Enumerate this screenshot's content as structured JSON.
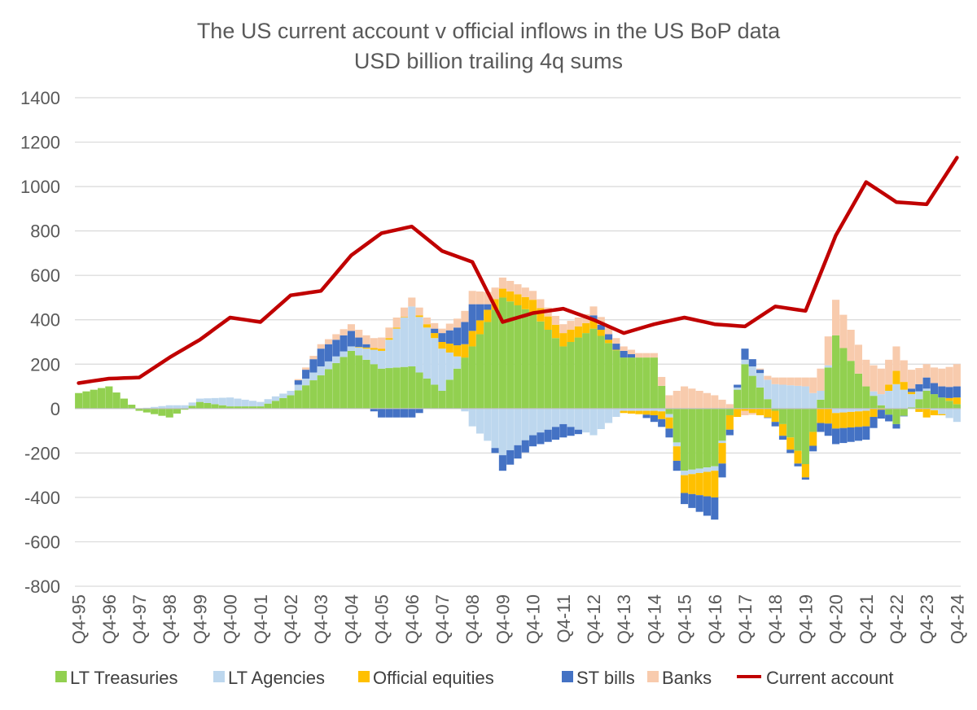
{
  "chart_data": {
    "type": "bar",
    "title": "The US current account v official inflows in the US BoP data",
    "subtitle": "USD billion trailing 4q sums",
    "ylim": [
      -800,
      1400
    ],
    "ytick_step": 200,
    "grid": true,
    "legend_position": "bottom",
    "first_quarter": "Q4-95",
    "x_tick_labels": [
      "Q4-95",
      "Q4-96",
      "Q4-97",
      "Q4-98",
      "Q4-99",
      "Q4-00",
      "Q4-01",
      "Q4-02",
      "Q4-03",
      "Q4-04",
      "Q4-05",
      "Q4-06",
      "Q4-07",
      "Q4-08",
      "Q4-09",
      "Q4-10",
      "Q4-11",
      "Q4-12",
      "Q4-13",
      "Q4-14",
      "Q4-15",
      "Q4-16",
      "Q4-17",
      "Q4-18",
      "Q4-19",
      "Q4-20",
      "Q4-21",
      "Q4-22",
      "Q4-23",
      "Q4-24"
    ],
    "anchor_quarters": [
      "Q4-95",
      "Q4-96",
      "Q4-97",
      "Q4-98",
      "Q4-99",
      "Q4-00",
      "Q4-01",
      "Q4-02",
      "Q4-03",
      "Q4-04",
      "Q4-05",
      "Q4-06",
      "Q4-07",
      "Q4-08",
      "Q4-09",
      "Q4-10",
      "Q4-11",
      "Q4-12",
      "Q4-13",
      "Q4-14",
      "Q4-15",
      "Q4-16",
      "Q4-17",
      "Q4-18",
      "Q4-19",
      "Q4-20",
      "Q4-21",
      "Q4-22",
      "Q4-23",
      "Q4-24"
    ],
    "stack_series": [
      {
        "name": "LT Treasuries",
        "color": "#92D050",
        "values": [
          70,
          100,
          -10,
          -40,
          30,
          10,
          10,
          60,
          150,
          260,
          180,
          190,
          80,
          280,
          500,
          430,
          280,
          360,
          230,
          230,
          -280,
          -260,
          200,
          -10,
          -250,
          330,
          100,
          -70,
          80,
          20
        ]
      },
      {
        "name": "LT Agencies",
        "color": "#BDD7EE",
        "values": [
          0,
          0,
          0,
          15,
          15,
          40,
          20,
          20,
          40,
          20,
          80,
          270,
          190,
          -80,
          -210,
          -120,
          -70,
          -120,
          -10,
          -10,
          -20,
          -20,
          20,
          110,
          100,
          -20,
          -10,
          110,
          10,
          -60
        ]
      },
      {
        "name": "Official equities",
        "color": "#FFC000",
        "values": [
          0,
          0,
          0,
          0,
          0,
          0,
          0,
          0,
          0,
          0,
          10,
          0,
          30,
          70,
          40,
          60,
          60,
          40,
          -10,
          -20,
          -80,
          -120,
          -10,
          -50,
          -60,
          -70,
          -70,
          60,
          -40,
          30
        ]
      },
      {
        "name": "ST bills",
        "color": "#4472C4",
        "values": [
          0,
          0,
          0,
          0,
          0,
          0,
          0,
          0,
          80,
          70,
          -40,
          -40,
          40,
          120,
          -70,
          -50,
          -60,
          20,
          30,
          -30,
          -50,
          -100,
          50,
          -20,
          -10,
          -70,
          -60,
          -20,
          50,
          50
        ]
      },
      {
        "name": "Banks",
        "color": "#F8CBAD",
        "values": [
          0,
          0,
          0,
          0,
          0,
          0,
          0,
          0,
          20,
          30,
          50,
          40,
          20,
          60,
          50,
          40,
          40,
          40,
          20,
          20,
          100,
          60,
          -20,
          30,
          40,
          160,
          120,
          110,
          60,
          100
        ]
      }
    ],
    "line_series": {
      "name": "Current account",
      "color": "#C00000",
      "values": [
        115,
        135,
        140,
        230,
        310,
        410,
        390,
        510,
        530,
        690,
        790,
        820,
        710,
        660,
        390,
        430,
        450,
        400,
        340,
        380,
        410,
        380,
        370,
        460,
        440,
        780,
        1020,
        930,
        920,
        1130
      ]
    }
  }
}
